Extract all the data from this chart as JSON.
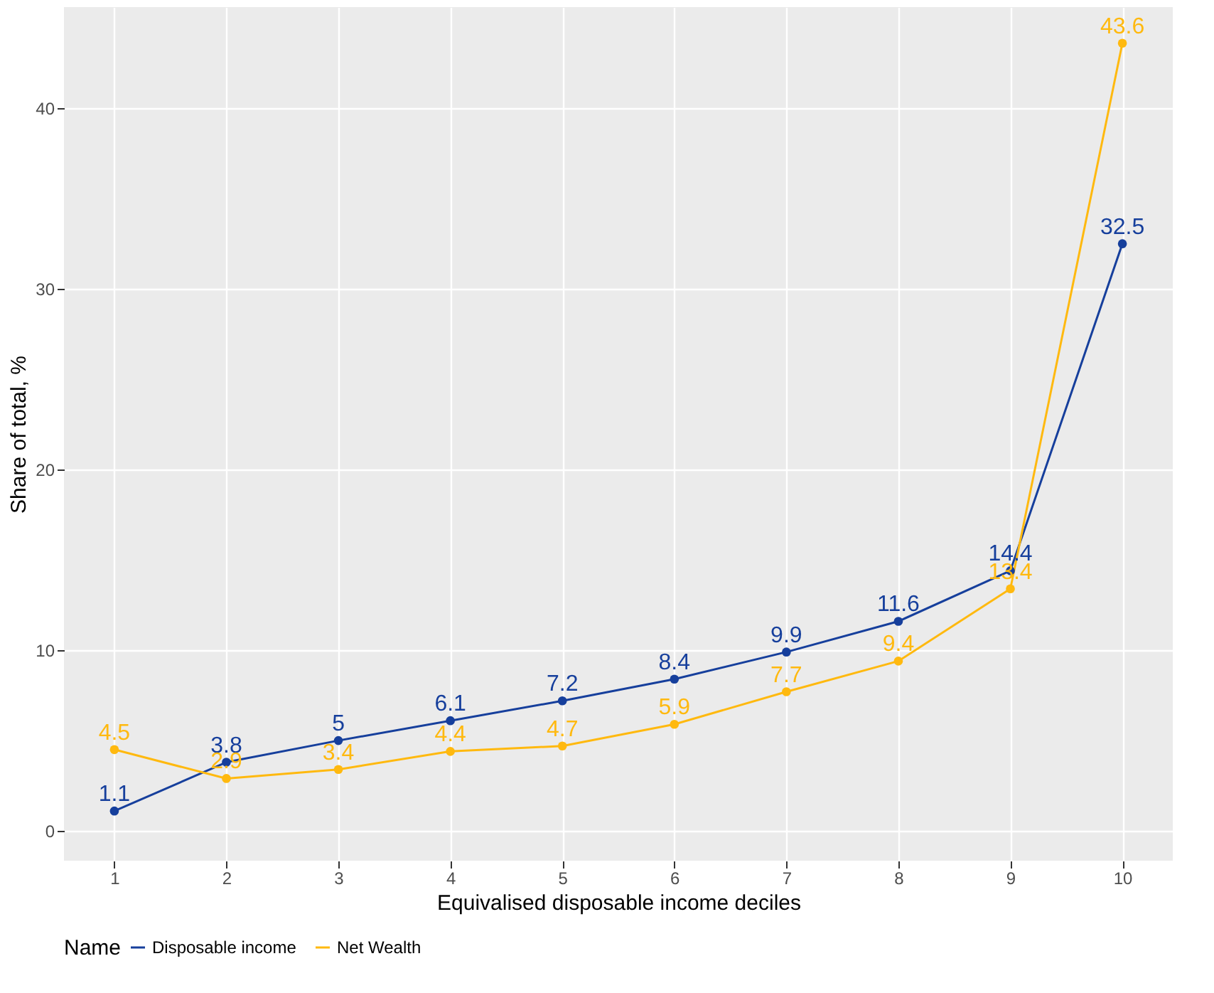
{
  "chart_data": {
    "type": "line",
    "xlabel": "Equivalised disposable income deciles",
    "ylabel": "Share of total, %",
    "legend_title": "Name",
    "x": [
      1,
      2,
      3,
      4,
      5,
      6,
      7,
      8,
      9,
      10
    ],
    "series": [
      {
        "name": "Disposable income",
        "color": "#163f9c",
        "values": [
          1.1,
          3.8,
          5,
          6.1,
          7.2,
          8.4,
          9.9,
          11.6,
          14.4,
          32.5
        ]
      },
      {
        "name": "Net Wealth",
        "color": "#ffb90f",
        "values": [
          4.5,
          2.9,
          3.4,
          4.4,
          4.7,
          5.9,
          7.7,
          9.4,
          13.4,
          43.6
        ]
      }
    ],
    "xlim": [
      0.55,
      10.45
    ],
    "xticks": [
      1,
      2,
      3,
      4,
      5,
      6,
      7,
      8,
      9,
      10
    ],
    "ylim": [
      -1.65,
      45.6
    ],
    "yticks": [
      0,
      10,
      20,
      30,
      40
    ],
    "grid": true,
    "legend": "bottom",
    "marker": "circle",
    "line_style": "solid",
    "data_labels": true
  }
}
